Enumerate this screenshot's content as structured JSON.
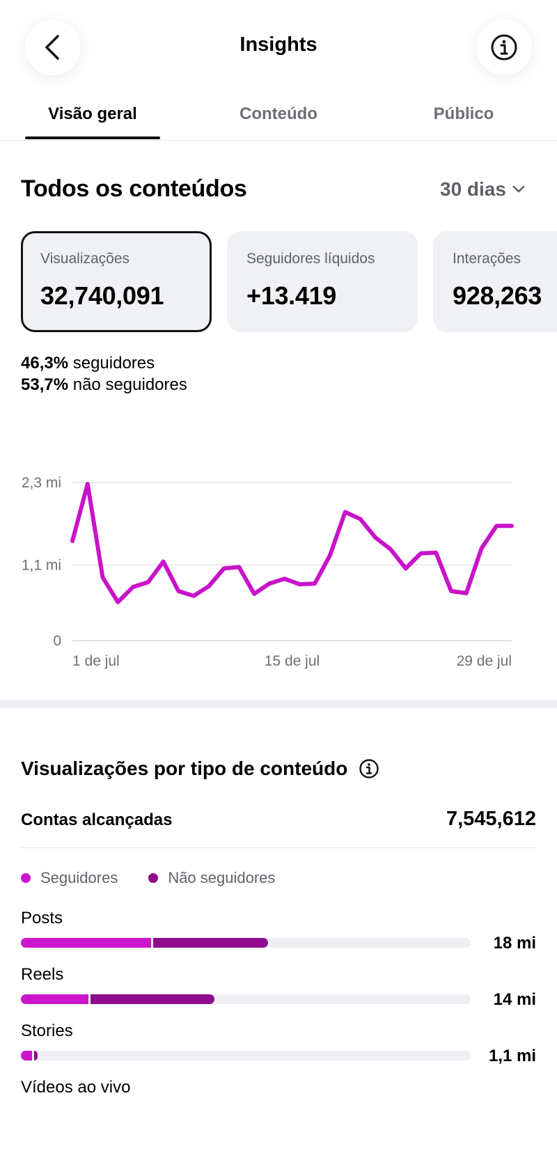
{
  "header": {
    "title": "Insights",
    "back_icon": "chevron-left-icon",
    "info_icon": "info-icon"
  },
  "tabs": [
    {
      "label": "Visão geral",
      "active": true
    },
    {
      "label": "Conteúdo",
      "active": false
    },
    {
      "label": "Público",
      "active": false
    }
  ],
  "overview": {
    "title": "Todos os conteúdos",
    "period": "30 dias",
    "cards": [
      {
        "label": "Visualizações",
        "value": "32,740,091",
        "selected": true
      },
      {
        "label": "Seguidores líquidos",
        "value": "+13.419",
        "selected": false
      },
      {
        "label": "Interações",
        "value": "928,263",
        "selected": false
      }
    ],
    "split": {
      "followers_pct": "46,3%",
      "followers_label": "seguidores",
      "non_followers_pct": "53,7%",
      "non_followers_label": "não seguidores"
    }
  },
  "chart_data": {
    "type": "line",
    "y_tick_labels": [
      "0",
      "1,1 mi",
      "2,3 mi"
    ],
    "y_ticks": [
      0,
      1.1,
      2.3
    ],
    "ylim": [
      0,
      2.3
    ],
    "x_tick_labels": [
      "1 de jul",
      "15 de jul",
      "29 de jul"
    ],
    "x_tick_days": [
      1,
      15,
      29
    ],
    "color": "#c913c9",
    "series": [
      {
        "x": [
          0.5,
          1.5,
          2.5,
          3.5,
          4.5,
          5.5,
          6.5,
          7.5,
          8.5,
          9.5,
          10.5,
          11.5,
          12.5,
          13.5,
          14.5,
          15.5,
          16.5,
          17.5,
          18.5,
          19.5,
          20.5,
          21.5,
          22.5,
          23.5,
          24.5,
          25.5,
          26.5,
          27.5,
          28.5,
          29.5
        ],
        "values": [
          1.45,
          2.28,
          0.92,
          0.56,
          0.78,
          0.85,
          1.15,
          0.72,
          0.65,
          0.79,
          1.05,
          1.07,
          0.68,
          0.83,
          0.9,
          0.82,
          0.83,
          1.24,
          1.87,
          1.77,
          1.5,
          1.33,
          1.05,
          1.27,
          1.28,
          0.72,
          0.69,
          1.34,
          1.67,
          1.67
        ]
      }
    ]
  },
  "content_type": {
    "title": "Visualizações por tipo de conteúdo",
    "info_icon": "info-icon",
    "reach_label": "Contas alcançadas",
    "reach_value": "7,545,612",
    "legend": [
      {
        "label": "Seguidores",
        "color": "#cc16cc"
      },
      {
        "label": "Não seguidores",
        "color": "#8e0b8e"
      }
    ],
    "rows": [
      {
        "label": "Posts",
        "value": "18 mi",
        "followers_fraction": 0.29,
        "non_followers_fraction": 0.26
      },
      {
        "label": "Reels",
        "value": "14 mi",
        "followers_fraction": 0.15,
        "non_followers_fraction": 0.28
      },
      {
        "label": "Stories",
        "value": "1,1 mi",
        "followers_fraction": 0.025,
        "non_followers_fraction": 0.012
      },
      {
        "label": "Vídeos ao vivo",
        "value": "",
        "followers_fraction": 0,
        "non_followers_fraction": 0
      }
    ]
  }
}
